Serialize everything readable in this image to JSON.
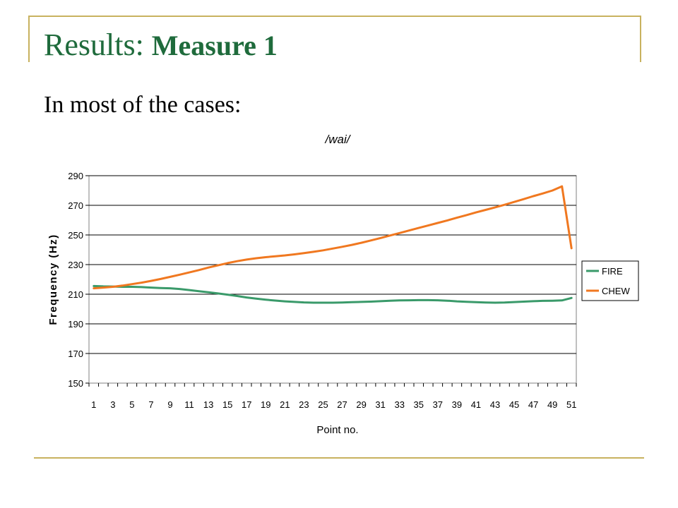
{
  "slide": {
    "title_prefix": "Results: ",
    "title_bold": "Measure 1",
    "subtitle": "In most of the cases:"
  },
  "colors": {
    "title": "#1f6b3c",
    "rule": "#c8b25f",
    "FIRE": "#3a9a6a",
    "CHEW": "#f07820"
  },
  "chart_data": {
    "type": "line",
    "title": "/wai/",
    "xlabel": "Point no.",
    "ylabel": "Frequency (Hz)",
    "ylim": [
      150,
      290
    ],
    "yticks": [
      150,
      170,
      190,
      210,
      230,
      250,
      270,
      290
    ],
    "xticks": [
      1,
      3,
      5,
      7,
      9,
      11,
      13,
      15,
      17,
      19,
      21,
      23,
      25,
      27,
      29,
      31,
      33,
      35,
      37,
      39,
      41,
      43,
      45,
      47,
      49,
      51
    ],
    "x": [
      1,
      2,
      3,
      4,
      5,
      6,
      7,
      8,
      9,
      10,
      11,
      12,
      13,
      14,
      15,
      16,
      17,
      18,
      19,
      20,
      21,
      22,
      23,
      24,
      25,
      26,
      27,
      28,
      29,
      30,
      31,
      32,
      33,
      34,
      35,
      36,
      37,
      38,
      39,
      40,
      41,
      42,
      43,
      44,
      45,
      46,
      47,
      48,
      49,
      50,
      51
    ],
    "grid": "horizontal",
    "legend_position": "right",
    "series": [
      {
        "name": "FIRE",
        "values": [
          215.5,
          215.3,
          215.2,
          215,
          215,
          214.8,
          214.5,
          214.2,
          214,
          213.5,
          212.8,
          212,
          211.3,
          210.5,
          209.7,
          208.8,
          207.8,
          207,
          206.3,
          205.7,
          205.2,
          204.8,
          204.5,
          204.3,
          204.3,
          204.3,
          204.4,
          204.6,
          204.8,
          205,
          205.3,
          205.6,
          205.8,
          205.9,
          206,
          206,
          205.9,
          205.6,
          205.2,
          204.9,
          204.6,
          204.4,
          204.3,
          204.4,
          204.7,
          205,
          205.3,
          205.5,
          205.6,
          205.8,
          207.5
        ]
      },
      {
        "name": "CHEW",
        "values": [
          214,
          214.5,
          215,
          215.8,
          216.8,
          217.8,
          219,
          220.3,
          221.7,
          223.2,
          224.7,
          226.3,
          228,
          229.5,
          231,
          232.3,
          233.4,
          234.3,
          235,
          235.6,
          236.2,
          236.9,
          237.7,
          238.6,
          239.6,
          240.8,
          242,
          243.3,
          244.7,
          246.3,
          247.9,
          249.6,
          251.3,
          253,
          254.7,
          256.4,
          258.1,
          259.8,
          261.6,
          263.4,
          265.2,
          266.9,
          268.6,
          270.4,
          272.3,
          274.2,
          276.2,
          278,
          280,
          282.8,
          241
        ]
      }
    ]
  }
}
